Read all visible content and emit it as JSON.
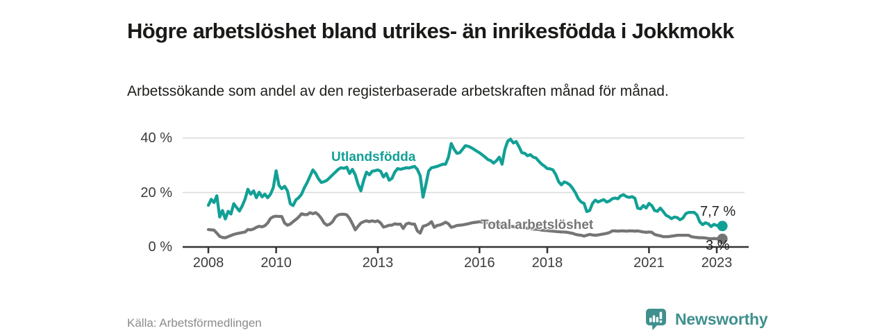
{
  "header": {
    "title": "Högre arbetslöshet bland utrikes- än inrikesfödda i Jokkmokk",
    "subtitle": "Arbetssökande som andel av den registerbaserade arbetskraften månad för månad."
  },
  "footer": {
    "source": "Källa: Arbetsförmedlingen",
    "brand": "Newsworthy"
  },
  "colors": {
    "foreign_line": "#12a096",
    "total_line": "#757575",
    "grid": "#dadada",
    "axis": "#333333",
    "brand": "#3f908e"
  },
  "chart_data": {
    "type": "line",
    "title": "Högre arbetslöshet bland utrikes- än inrikesfödda i Jokkmokk",
    "subtitle": "Arbetssökande som andel av den registerbaserade arbetskraften månad för månad.",
    "x_start": 2008.0,
    "x_step": 0.0833333,
    "ylim": [
      0,
      40
    ],
    "xlim": [
      2007.3,
      2023.9
    ],
    "grid": true,
    "legend_position": "inline-labels",
    "yticks": [
      {
        "value": 0,
        "label": "0 %"
      },
      {
        "value": 20,
        "label": "20 %"
      },
      {
        "value": 40,
        "label": "40 %"
      }
    ],
    "xticks": [
      {
        "value": 2008,
        "label": "2008"
      },
      {
        "value": 2010,
        "label": "2010"
      },
      {
        "value": 2013,
        "label": "2013"
      },
      {
        "value": 2016,
        "label": "2016"
      },
      {
        "value": 2018,
        "label": "2018"
      },
      {
        "value": 2021,
        "label": "2021"
      },
      {
        "value": 2023,
        "label": "2023"
      }
    ],
    "series": [
      {
        "name": "Utlandsfödda",
        "color": "#12a096",
        "end_label": "7,7 %",
        "end_value": 7.7,
        "values": [
          15.3,
          17.5,
          16.3,
          18.8,
          11,
          13.4,
          10.3,
          13.1,
          12.1,
          15.9,
          14.5,
          13.2,
          15.1,
          17.6,
          21.2,
          19.4,
          20.6,
          18.1,
          20.1,
          18.4,
          19.4,
          18.1,
          19.4,
          21.8,
          28,
          22.6,
          21.4,
          22.3,
          20.6,
          15.9,
          15.2,
          17.3,
          18.1,
          19.4,
          21.8,
          23.7,
          26,
          28.3,
          27,
          25,
          23.7,
          24,
          24.5,
          25.5,
          26.5,
          27.5,
          28.5,
          29.1,
          28.9,
          29.3,
          27,
          28.5,
          26.5,
          23,
          20.6,
          24.5,
          27.5,
          26.5,
          27.8,
          28,
          28.3,
          27.8,
          25.7,
          27,
          24.5,
          25.2,
          27.5,
          28.8,
          28.5,
          28.8,
          29.1,
          29,
          29.3,
          29.6,
          28.5,
          26.2,
          18.3,
          22.8,
          27.9,
          29.1,
          29.3,
          29.6,
          30,
          30.4,
          30.4,
          33,
          38,
          35.9,
          34.4,
          34.6,
          35.9,
          37.2,
          37,
          36.5,
          35.9,
          35.2,
          34.6,
          33.8,
          33,
          32.1,
          31.7,
          30.8,
          31.7,
          33,
          30.4,
          35.9,
          38.9,
          39.6,
          38.2,
          38.7,
          36.8,
          34.6,
          34.4,
          33.5,
          33.9,
          33,
          32.7,
          31.5,
          30.4,
          29.7,
          28.8,
          28.7,
          28.3,
          26.6,
          24,
          22.8,
          23.9,
          23.5,
          22.8,
          21.5,
          19.8,
          17.7,
          16.5,
          16,
          13,
          13.4,
          16,
          17.2,
          16.5,
          17,
          17.4,
          16.5,
          16.9,
          17.7,
          18,
          17.7,
          18.8,
          19.2,
          18.5,
          18.2,
          18.5,
          17.9,
          14.3,
          14,
          15.2,
          14.3,
          16,
          15.2,
          13.4,
          13.1,
          14.3,
          13.1,
          11.7,
          11.1,
          10.4,
          11,
          10.8,
          10,
          10.6,
          12.2,
          12.7,
          12.7,
          12.7,
          11.8,
          9.2,
          8.2,
          8.9,
          8.5,
          7.5,
          8.3,
          7.9,
          7.3,
          7.7
        ]
      },
      {
        "name": "Total arbetslöshet",
        "color": "#757575",
        "end_label": "3 %",
        "end_value": 3,
        "values": [
          6.4,
          6.3,
          6.2,
          5.1,
          3.9,
          3.5,
          3.4,
          3.8,
          4.2,
          4.6,
          4.9,
          5.1,
          5.3,
          5.5,
          6.4,
          6.3,
          6.6,
          7.2,
          7.6,
          7.4,
          7.8,
          8.8,
          10.5,
          11.1,
          11.3,
          11.2,
          11.2,
          8.8,
          8,
          8.4,
          9.3,
          10.1,
          11,
          12.2,
          11.9,
          11.9,
          12.6,
          12.2,
          12.6,
          11.8,
          10.5,
          8.8,
          8,
          8.4,
          9.3,
          11,
          11.8,
          12,
          12,
          11.8,
          10.5,
          8.5,
          6.3,
          7.6,
          8.8,
          9.3,
          9.6,
          9.3,
          9.6,
          9.3,
          9.6,
          8.8,
          7.3,
          7.6,
          8,
          8,
          8.5,
          8.3,
          8.4,
          6.8,
          8.4,
          8.8,
          8.4,
          8.4,
          5.9,
          5.1,
          7.6,
          7.9,
          8.4,
          9.3,
          7.2,
          7.9,
          8.1,
          8.5,
          9.1,
          8.5,
          7.2,
          7.5,
          7.9,
          8,
          8.1,
          8.3,
          8.5,
          8.8,
          9,
          9.1,
          9.3,
          9.1,
          9,
          8.8,
          8.6,
          8.5,
          8.3,
          8.2,
          8,
          7.9,
          7.8,
          7.6,
          7.5,
          7.4,
          7.2,
          7.1,
          7,
          6.9,
          6.8,
          6.6,
          6.5,
          6.4,
          6.2,
          6.1,
          6,
          5.9,
          5.8,
          5.7,
          5.6,
          5.5,
          5.5,
          5.4,
          5.2,
          5,
          4.6,
          4.4,
          4.3,
          4,
          4.3,
          4.6,
          4.4,
          4.3,
          4.4,
          4.6,
          4.8,
          5,
          5.3,
          5.9,
          5.9,
          5.8,
          5.9,
          5.9,
          5.8,
          5.9,
          5.9,
          5.8,
          5.9,
          5.7,
          5.5,
          5.4,
          5.5,
          5.4,
          4.6,
          4.3,
          4.1,
          3.8,
          3.8,
          3.8,
          4,
          4.1,
          4.3,
          4.3,
          4.3,
          4.3,
          4.3,
          3.8,
          3.6,
          3.5,
          3.4,
          3.4,
          3.3,
          3.1,
          3,
          3.1,
          3,
          3.1,
          3
        ]
      }
    ]
  }
}
